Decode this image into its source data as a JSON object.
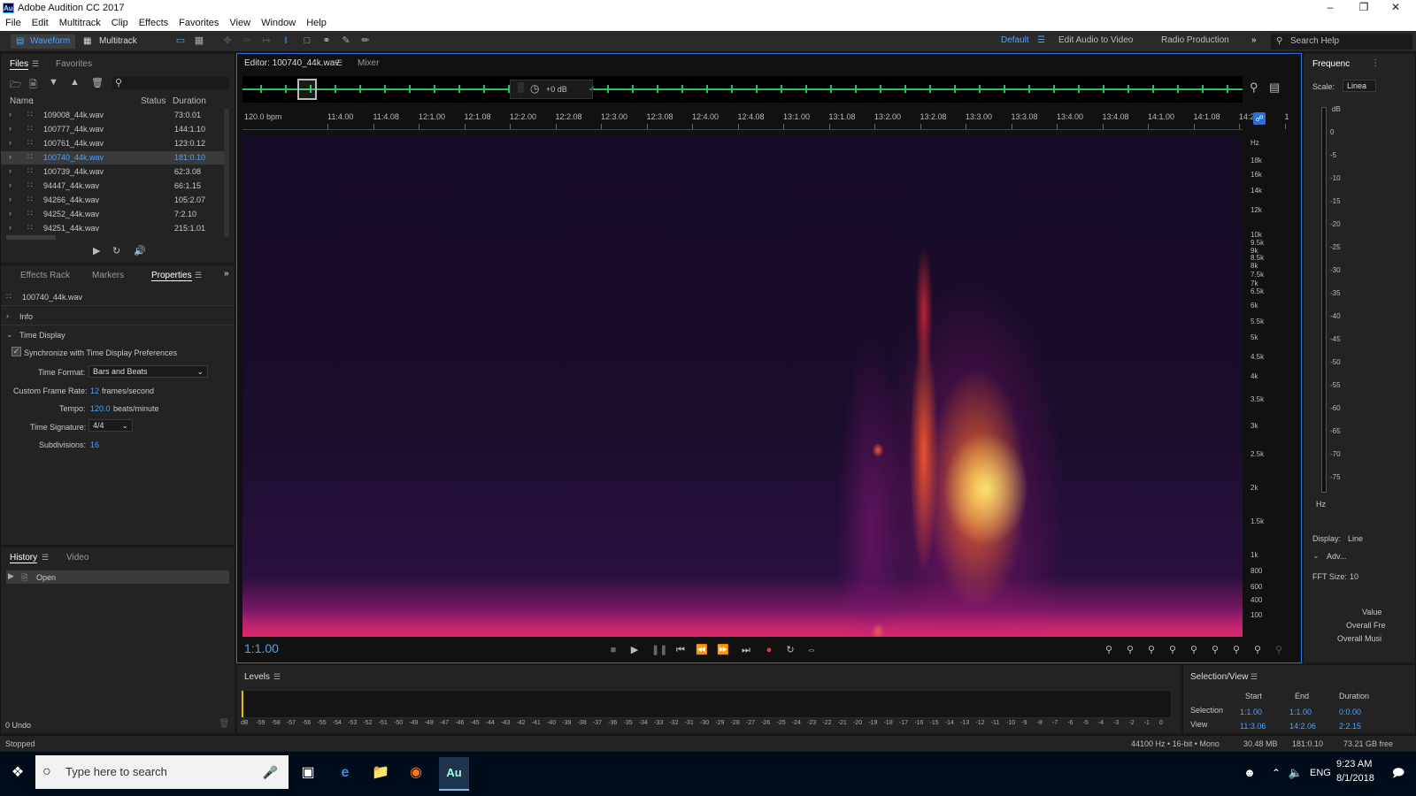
{
  "window": {
    "title": "Adobe Audition CC 2017",
    "app_icon": "Au"
  },
  "menu": [
    "File",
    "Edit",
    "Multitrack",
    "Clip",
    "Effects",
    "Favorites",
    "View",
    "Window",
    "Help"
  ],
  "toolbar": {
    "waveform": "Waveform",
    "multitrack": "Multitrack",
    "workspaces": [
      "Default",
      "Edit Audio to Video",
      "Radio Production"
    ],
    "search_placeholder": "Search Help"
  },
  "files_panel": {
    "tabs": [
      "Files",
      "Favorites"
    ],
    "columns": [
      "Name",
      "Status",
      "Duration"
    ],
    "files": [
      {
        "name": "109008_44k.wav",
        "duration": "73:0.01"
      },
      {
        "name": "100777_44k.wav",
        "duration": "144:1.10"
      },
      {
        "name": "100761_44k.wav",
        "duration": "123:0.12"
      },
      {
        "name": "100740_44k.wav",
        "duration": "181:0.10",
        "selected": true
      },
      {
        "name": "100739_44k.wav",
        "duration": "62:3.08"
      },
      {
        "name": "94447_44k.wav",
        "duration": "66:1.15"
      },
      {
        "name": "94266_44k.wav",
        "duration": "105:2.07"
      },
      {
        "name": "94252_44k.wav",
        "duration": "7:2.10"
      },
      {
        "name": "94251_44k.wav",
        "duration": "215:1.01"
      }
    ]
  },
  "properties_panel": {
    "tabs": [
      "Effects Rack",
      "Markers",
      "Properties"
    ],
    "file": "100740_44k.wav",
    "info": "Info",
    "time_display": "Time Display",
    "sync_label": "Synchronize with Time Display Preferences",
    "time_format_label": "Time Format:",
    "time_format": "Bars and Beats",
    "frame_rate_label": "Custom Frame Rate:",
    "frame_rate": "12",
    "frame_rate_unit": "frames/second",
    "tempo_label": "Tempo:",
    "tempo": "120.0",
    "tempo_unit": "beats/minute",
    "sig_label": "Time Signature:",
    "sig": "4/4",
    "subdiv_label": "Subdivisions:",
    "subdiv": "16"
  },
  "history_panel": {
    "tabs": [
      "History",
      "Video"
    ],
    "items": [
      "Open"
    ],
    "undo": "0 Undo"
  },
  "editor": {
    "tab": "Editor: 100740_44k.wav",
    "mixer": "Mixer",
    "gain": "+0 dB",
    "bpm_label": "120.0 bpm",
    "time": "1:1.00",
    "ruler": [
      "11:4.00",
      "11:4.08",
      "12:1.00",
      "12:1.08",
      "12:2.00",
      "12:2.08",
      "12:3.00",
      "12:3.08",
      "12:4.00",
      "12:4.08",
      "13:1.00",
      "13:1.08",
      "13:2.00",
      "13:2.08",
      "13:3.00",
      "13:3.08",
      "13:4.00",
      "13:4.08",
      "14:1.00",
      "14:1.08",
      "14:2.00",
      "1"
    ],
    "hz": [
      "Hz",
      "18k",
      "16k",
      "14k",
      "12k",
      "10k",
      "9.5k",
      "9k",
      "8.5k",
      "8k",
      "7.5k",
      "7k",
      "6.5k",
      "6k",
      "5.5k",
      "5k",
      "4.5k",
      "4k",
      "3.5k",
      "3k",
      "2.5k",
      "2k",
      "1.5k",
      "1k",
      "800",
      "600",
      "400",
      "100"
    ]
  },
  "freq_panel": {
    "title": "Frequenc",
    "scale_label": "Scale:",
    "scale": "Linea",
    "db": [
      "dB",
      "0",
      "-5",
      "-10",
      "-15",
      "-20",
      "-25",
      "-30",
      "-35",
      "-40",
      "-45",
      "-50",
      "-55",
      "-60",
      "-65",
      "-70",
      "-75"
    ],
    "hz": "Hz",
    "display_label": "Display:",
    "display": "Line",
    "adv": "Adv...",
    "fft_label": "FFT Size:",
    "fft": "10",
    "value": "Value",
    "overall_fre": "Overall Fre",
    "overall_mus": "Overall Musi"
  },
  "levels": {
    "title": "Levels",
    "scale": [
      "dB",
      "-59",
      "-58",
      "-57",
      "-56",
      "-55",
      "-54",
      "-53",
      "-52",
      "-51",
      "-50",
      "-49",
      "-48",
      "-47",
      "-46",
      "-45",
      "-44",
      "-43",
      "-42",
      "-41",
      "-40",
      "-39",
      "-38",
      "-37",
      "-36",
      "-35",
      "-34",
      "-33",
      "-32",
      "-31",
      "-30",
      "-29",
      "-28",
      "-27",
      "-26",
      "-25",
      "-24",
      "-23",
      "-22",
      "-21",
      "-20",
      "-19",
      "-18",
      "-17",
      "-16",
      "-15",
      "-14",
      "-13",
      "-12",
      "-11",
      "-10",
      "-9",
      "-8",
      "-7",
      "-6",
      "-5",
      "-4",
      "-3",
      "-2",
      "-1",
      "0"
    ]
  },
  "selection_view": {
    "title": "Selection/View",
    "headers": [
      "Start",
      "End",
      "Duration"
    ],
    "selection_label": "Selection",
    "selection": [
      "1:1.00",
      "1:1.00",
      "0:0.00"
    ],
    "view_label": "View",
    "view": [
      "11:3.06",
      "14:2.06",
      "2:2.15"
    ]
  },
  "status": {
    "left": "Stopped",
    "format": "44100 Hz • 16-bit • Mono",
    "size": "30.48 MB",
    "duration": "181:0.10",
    "free": "73.21 GB free"
  },
  "taskbar": {
    "search": "Type here to search",
    "lang": "ENG",
    "time": "9:23 AM",
    "date": "8/1/2018"
  }
}
